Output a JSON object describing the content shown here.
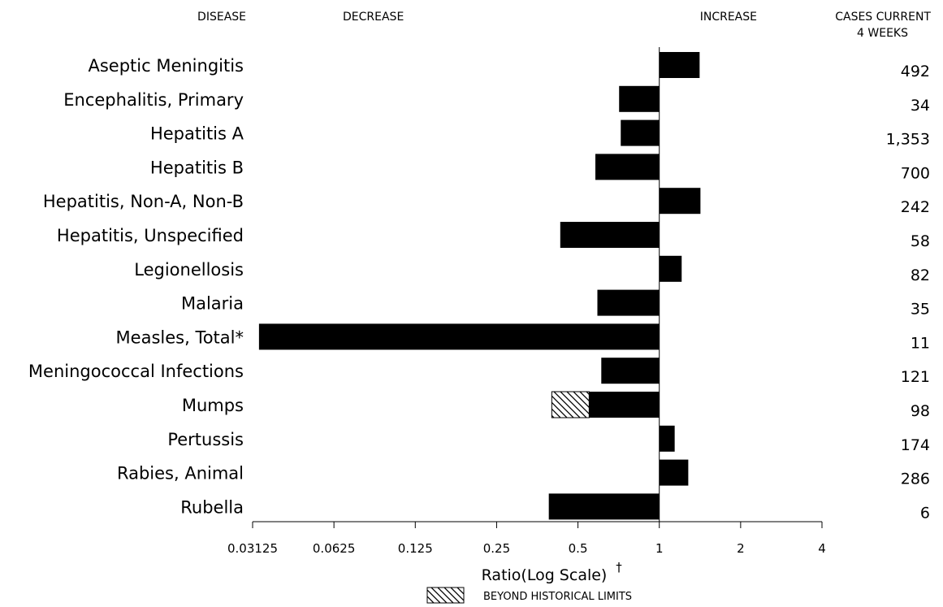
{
  "chart_data": {
    "type": "bar",
    "orientation": "horizontal",
    "headers": {
      "disease": "DISEASE",
      "decrease": "DECREASE",
      "increase": "INCREASE",
      "cases_line1": "CASES CURRENT",
      "cases_line2": "4 WEEKS"
    },
    "categories": [
      "Aseptic Meningitis",
      "Encephalitis, Primary",
      "Hepatitis A",
      "Hepatitis B",
      "Hepatitis, Non-A, Non-B",
      "Hepatitis, Unspecified",
      "Legionellosis",
      "Malaria",
      "Measles, Total*",
      "Meningococcal Infections",
      "Mumps",
      "Pertussis",
      "Rabies, Animal",
      "Rubella"
    ],
    "values": [
      1.41,
      0.71,
      0.72,
      0.58,
      1.42,
      0.43,
      1.21,
      0.59,
      0.033,
      0.61,
      0.55,
      1.14,
      1.28,
      0.39
    ],
    "beyond_historical_limits": [
      null,
      null,
      null,
      null,
      null,
      null,
      null,
      null,
      null,
      null,
      0.4,
      null,
      null,
      null
    ],
    "cases_current_4_weeks": [
      "492",
      "34",
      "1,353",
      "700",
      "242",
      "58",
      "82",
      "35",
      "11",
      "121",
      "98",
      "174",
      "286",
      "6"
    ],
    "x_scale": "log2",
    "xlim": [
      0.03125,
      4
    ],
    "x_ticks": [
      0.03125,
      0.0625,
      0.125,
      0.25,
      0.5,
      1,
      2,
      4
    ],
    "x_tick_labels": [
      "0.03125",
      "0.0625",
      "0.125",
      "0.25",
      "0.5",
      "1",
      "2",
      "4"
    ],
    "xlabel": "Ratio(Log Scale)",
    "xlabel_mark": "†",
    "legend": {
      "label": "BEYOND HISTORICAL LIMITS",
      "placement": "bottom-center"
    },
    "colors": {
      "bar": "#000000",
      "beyond_fill": "#ffffff"
    },
    "grid": false
  }
}
